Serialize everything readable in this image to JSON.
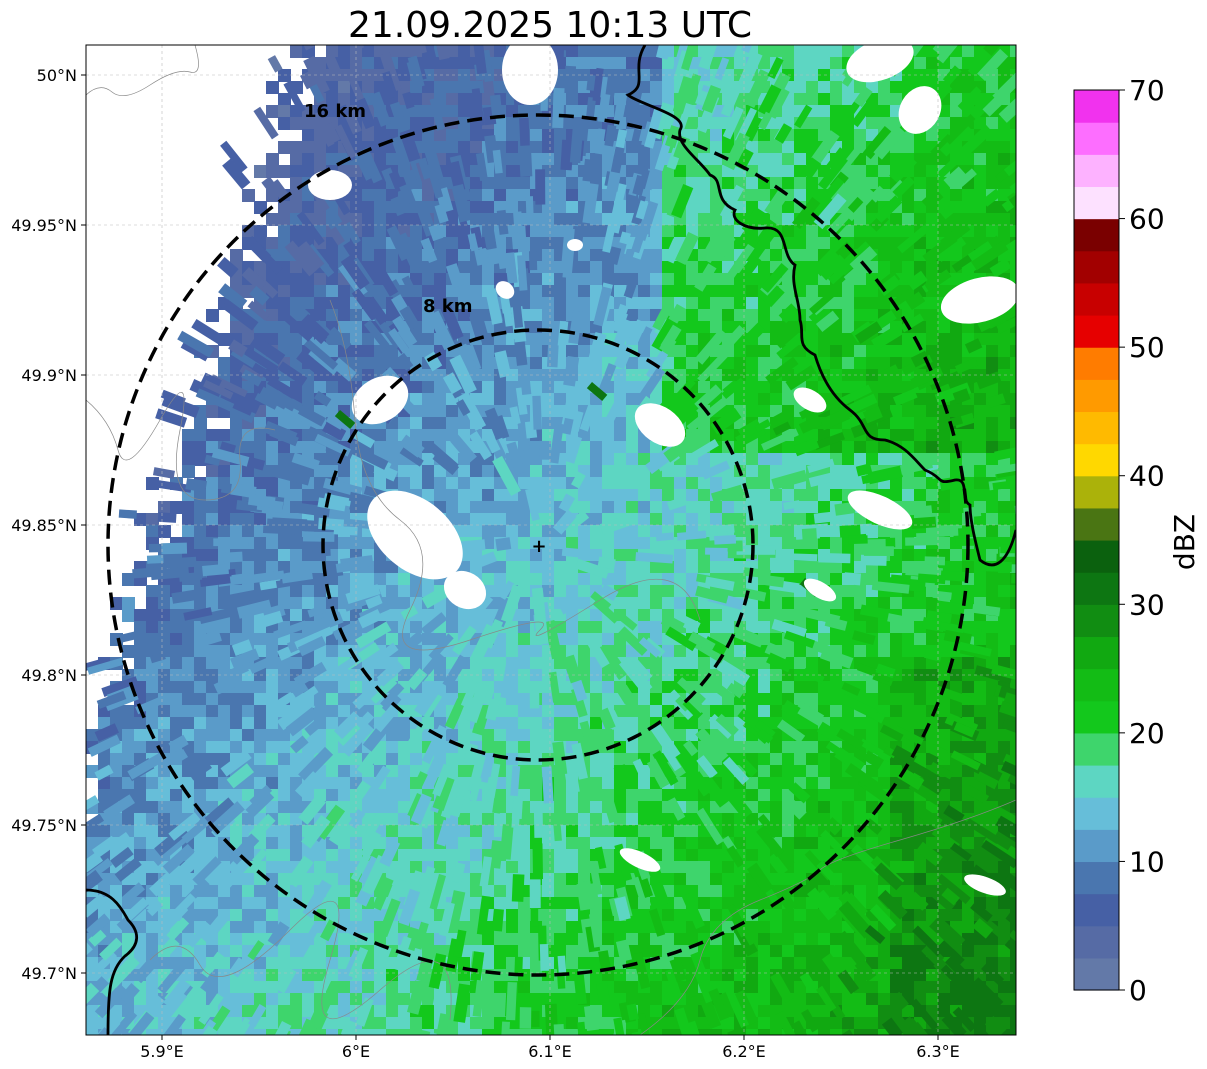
{
  "title": "21.09.2025 10:13 UTC",
  "map": {
    "x_ticks": [
      "5.9°E",
      "6°E",
      "6.1°E",
      "6.2°E",
      "6.3°E"
    ],
    "y_ticks": [
      "50°N",
      "49.95°N",
      "49.9°N",
      "49.85°N",
      "49.8°N",
      "49.75°N",
      "49.7°N"
    ],
    "ring_labels": [
      "16 km",
      "8 km"
    ],
    "radar_site_marker": "+"
  },
  "colorbar": {
    "label": "dBZ",
    "ticks": [
      "0",
      "10",
      "20",
      "30",
      "40",
      "50",
      "60",
      "70"
    ],
    "range": [
      0,
      70
    ],
    "step": 2.5,
    "colors": [
      "#6379a8",
      "#566ba5",
      "#4660a5",
      "#4a76af",
      "#5a9bc9",
      "#66bed9",
      "#5dd6c2",
      "#3ed56c",
      "#13c81c",
      "#13bc15",
      "#11a911",
      "#118d12",
      "#0d7612",
      "#0b610e",
      "#4a7513",
      "#abb20a",
      "#ffd800",
      "#ffba00",
      "#ff9a00",
      "#ff7c00",
      "#e60000",
      "#c80000",
      "#a20000",
      "#7a0000",
      "#fde1ff",
      "#fdb2ff",
      "#fd6eff",
      "#f132ee"
    ]
  }
}
